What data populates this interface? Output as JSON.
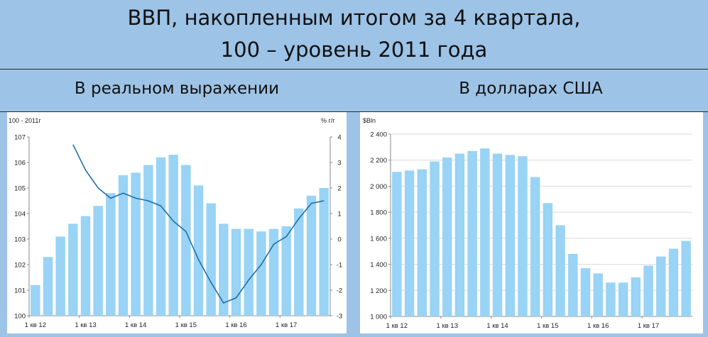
{
  "header": {
    "title_line1": "ВВП, накопленным итогом за 4 квартала,",
    "title_line2": "100 – уровень 2011 года"
  },
  "left_panel": {
    "subtitle": "В реальном выражении"
  },
  "right_panel": {
    "subtitle": "В долларах США"
  },
  "colors": {
    "bar": "#99d3f5",
    "line": "#1f6fa6",
    "background": "#9dc3e6"
  },
  "chart_data": [
    {
      "type": "bar",
      "ylabel": "100 - 2011г",
      "y2label": "% г/г",
      "categories": [
        "1 кв 12",
        "2 кв 12",
        "3 кв 12",
        "4 кв 12",
        "1 кв 13",
        "2 кв 13",
        "3 кв 13",
        "4 кв 13",
        "1 кв 14",
        "2 кв 14",
        "3 кв 14",
        "4 кв 14",
        "1 кв 15",
        "2 кв 15",
        "3 кв 15",
        "4 кв 15",
        "1 кв 16",
        "2 кв 16",
        "3 кв 16",
        "4 кв 16",
        "1 кв 17",
        "2 кв 17",
        "3 кв 17",
        "4 кв 17"
      ],
      "tick_labels": [
        "1 кв 12",
        "1 кв 13",
        "1 кв 14",
        "1 кв 15",
        "1 кв 16",
        "1 кв 17"
      ],
      "series": [
        {
          "type": "bar",
          "values": [
            101.2,
            102.3,
            103.1,
            103.6,
            103.9,
            104.3,
            104.8,
            105.5,
            105.6,
            105.9,
            106.2,
            106.3,
            105.9,
            105.1,
            104.4,
            103.6,
            103.4,
            103.4,
            103.3,
            103.4,
            103.5,
            104.2,
            104.7,
            105.0
          ]
        },
        {
          "type": "line",
          "axis": "right",
          "values": [
            null,
            null,
            null,
            3.7,
            2.7,
            2.0,
            1.6,
            1.8,
            1.6,
            1.5,
            1.3,
            0.7,
            0.3,
            -0.8,
            -1.7,
            -2.5,
            -2.3,
            -1.6,
            -1.0,
            -0.2,
            0.1,
            0.8,
            1.4,
            1.5
          ]
        }
      ],
      "ylim": [
        100,
        107
      ],
      "y2lim": [
        -3,
        4
      ],
      "yticks": [
        "100",
        "101",
        "102",
        "103",
        "104",
        "105",
        "106",
        "107"
      ],
      "y2ticks": [
        "-3",
        "-2",
        "-1",
        "0",
        "1",
        "2",
        "3",
        "4"
      ]
    },
    {
      "type": "bar",
      "ylabel": "$Bln",
      "categories": [
        "1 кв 12",
        "2 кв 12",
        "3 кв 12",
        "4 кв 12",
        "1 кв 13",
        "2 кв 13",
        "3 кв 13",
        "4 кв 13",
        "1 кв 14",
        "2 кв 14",
        "3 кв 14",
        "4 кв 14",
        "1 кв 15",
        "2 кв 15",
        "3 кв 15",
        "4 кв 15",
        "1 кв 16",
        "2 кв 16",
        "3 кв 16",
        "4 кв 16",
        "1 кв 17",
        "2 кв 17",
        "3 кв 17",
        "4 кв 17"
      ],
      "tick_labels": [
        "1 кв 12",
        "1 кв 13",
        "1 кв 14",
        "1 кв 15",
        "1 кв 16",
        "1 кв 17"
      ],
      "series": [
        {
          "type": "bar",
          "values": [
            2110,
            2120,
            2130,
            2190,
            2220,
            2250,
            2270,
            2290,
            2250,
            2240,
            2230,
            2070,
            1870,
            1700,
            1480,
            1370,
            1330,
            1260,
            1260,
            1300,
            1390,
            1460,
            1520,
            1580
          ]
        }
      ],
      "ylim": [
        1000,
        2400
      ],
      "yticks": [
        "1 000",
        "1 200",
        "1 400",
        "1 600",
        "1 800",
        "2 000",
        "2 200",
        "2 400"
      ],
      "grid": true
    }
  ]
}
